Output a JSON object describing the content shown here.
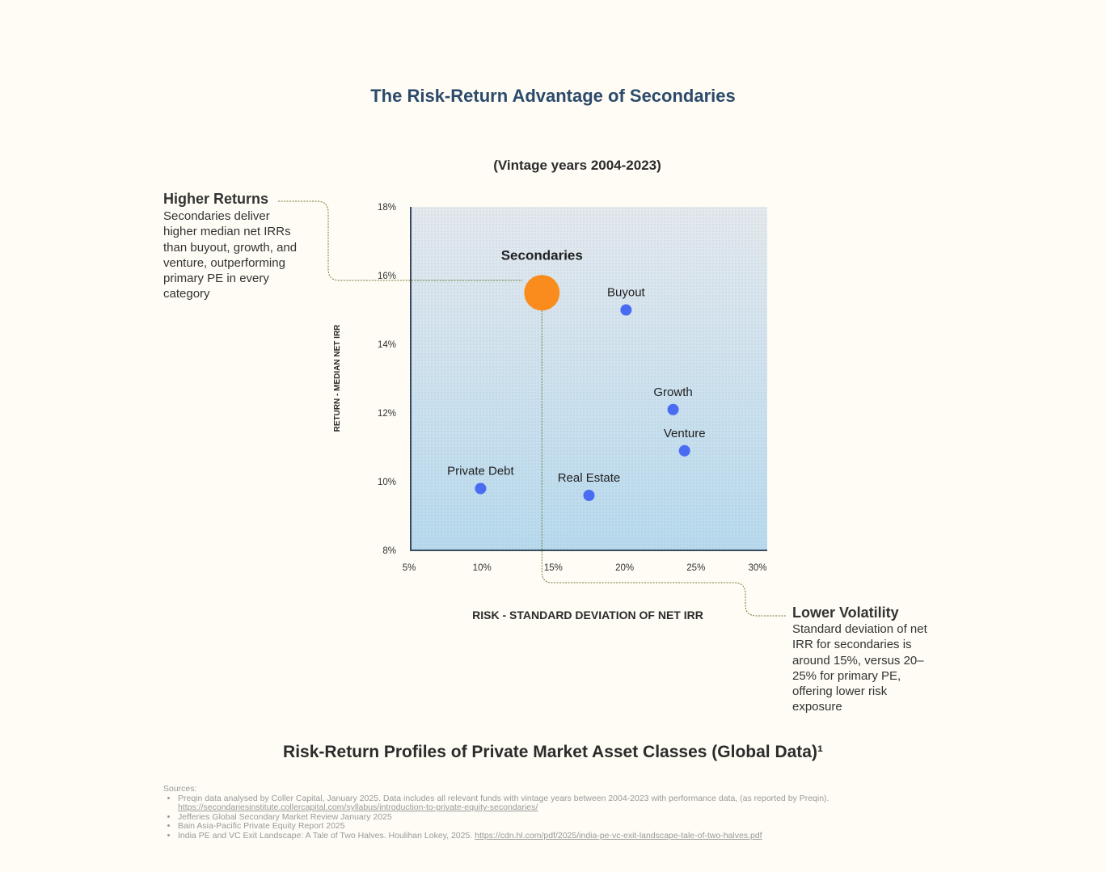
{
  "title": "The Risk-Return Advantage of Secondaries",
  "footer_title": "Risk-Return Profiles of Private Market Asset Classes (Global Data)¹",
  "annotations": {
    "higher_returns": {
      "heading": "Higher Returns",
      "text": "Secondaries deliver higher median net IRRs than buyout, growth, and venture, outperforming primary PE in every category"
    },
    "lower_volatility": {
      "heading": "Lower Volatility",
      "text": "Standard deviation of net IRR for secondaries is around 15%, versus 20–25% for primary PE, offering lower risk exposure"
    }
  },
  "chart_data": {
    "type": "scatter",
    "subtitle": "(Vintage years 2004-2023)",
    "xlabel": "RISK - STANDARD DEVIATION OF NET IRR",
    "ylabel": "RETURN - MEDIAN NET IRR",
    "xlim": [
      5,
      30
    ],
    "ylim": [
      8,
      18
    ],
    "x_ticks": [
      "5%",
      "10%",
      "15%",
      "20%",
      "25%",
      "30%"
    ],
    "y_ticks": [
      "8%",
      "10%",
      "12%",
      "14%",
      "16%",
      "18%"
    ],
    "points": [
      {
        "label": "Secondaries",
        "x": 14.2,
        "y": 15.5,
        "highlight": true
      },
      {
        "label": "Buyout",
        "x": 20.1,
        "y": 15.0
      },
      {
        "label": "Growth",
        "x": 23.4,
        "y": 12.1
      },
      {
        "label": "Venture",
        "x": 24.2,
        "y": 10.9
      },
      {
        "label": "Private Debt",
        "x": 9.9,
        "y": 9.8
      },
      {
        "label": "Real Estate",
        "x": 17.5,
        "y": 9.6
      }
    ],
    "colors": {
      "highlight": "#f98c1c",
      "point": "#4a6cf2",
      "plot_top": "#e4e9ee",
      "plot_bottom": "#b8daee",
      "leader": "#6e7a3a"
    }
  },
  "sources": {
    "label": "Sources",
    "items": [
      {
        "text": "Preqin data analysed by Coller Capital, January 2025. Data includes all relevant funds with vintage years between 2004-2023 with performance data, (as reported by Preqin).",
        "link": "https://secondariesinstitute.collercapital.com/syllabus/introduction-to-private-equity-secondaries/"
      },
      {
        "text": "Jefferies Global Secondary Market Review January 2025",
        "link": ""
      },
      {
        "text": "Bain Asia-Pacific Private Equity Report 2025",
        "link": ""
      },
      {
        "text": "India PE and VC Exit Landscape: A Tale of Two Halves. Houlihan Lokey, 2025. ",
        "link": "https://cdn.hl.com/pdf/2025/india-pe-vc-exit-landscape-tale-of-two-halves.pdf"
      }
    ]
  }
}
